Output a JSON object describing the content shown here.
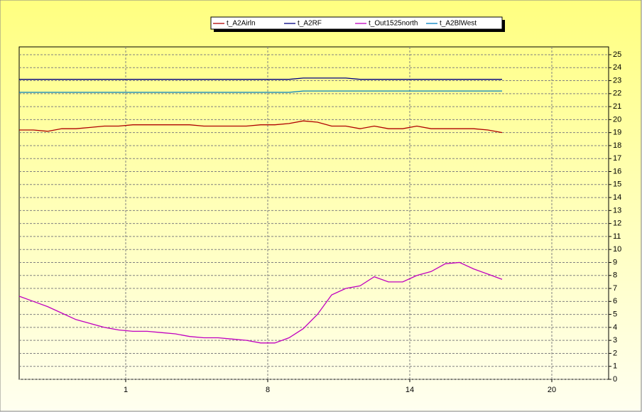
{
  "chart_data": {
    "type": "line",
    "x": [
      0.25,
      0.35,
      0.45,
      0.55,
      0.65,
      0.75,
      0.85,
      0.95,
      1.05,
      1.15,
      1.25,
      1.35,
      1.45,
      1.55,
      1.65,
      1.75,
      1.85,
      1.95,
      2.05,
      2.15,
      2.25,
      2.35,
      2.45,
      2.55,
      2.65,
      2.75,
      2.85,
      2.95,
      3.05,
      3.15,
      3.25,
      3.35,
      3.45,
      3.55,
      3.65
    ],
    "series": [
      {
        "name": "t_A2Airln",
        "color": "#b00000",
        "values": [
          19.2,
          19.2,
          19.1,
          19.3,
          19.3,
          19.4,
          19.5,
          19.5,
          19.6,
          19.6,
          19.6,
          19.6,
          19.6,
          19.5,
          19.5,
          19.5,
          19.5,
          19.6,
          19.6,
          19.7,
          19.9,
          19.8,
          19.5,
          19.5,
          19.3,
          19.5,
          19.3,
          19.3,
          19.5,
          19.3,
          19.3,
          19.3,
          19.3,
          19.2,
          19.0
        ]
      },
      {
        "name": "t_A2RF",
        "color": "#000080",
        "values": [
          23.1,
          23.1,
          23.1,
          23.1,
          23.1,
          23.1,
          23.1,
          23.1,
          23.1,
          23.1,
          23.1,
          23.1,
          23.1,
          23.1,
          23.1,
          23.1,
          23.1,
          23.1,
          23.1,
          23.1,
          23.2,
          23.2,
          23.2,
          23.2,
          23.1,
          23.1,
          23.1,
          23.1,
          23.1,
          23.1,
          23.1,
          23.1,
          23.1,
          23.1,
          23.1
        ]
      },
      {
        "name": "t_Out1525north",
        "color": "#c000c0",
        "values": [
          6.4,
          6.0,
          5.6,
          5.1,
          4.6,
          4.3,
          4.0,
          3.8,
          3.7,
          3.7,
          3.6,
          3.5,
          3.3,
          3.2,
          3.2,
          3.1,
          3.0,
          2.8,
          2.8,
          3.2,
          3.9,
          5.0,
          6.5,
          7.0,
          7.2,
          7.9,
          7.5,
          7.5,
          8.0,
          8.3,
          8.9,
          9.0,
          8.5,
          8.1,
          7.7
        ]
      },
      {
        "name": "t_A2BlWest",
        "color": "#0080c0",
        "values": [
          22.1,
          22.1,
          22.1,
          22.1,
          22.1,
          22.1,
          22.1,
          22.1,
          22.1,
          22.1,
          22.1,
          22.1,
          22.1,
          22.1,
          22.1,
          22.1,
          22.1,
          22.1,
          22.1,
          22.1,
          22.2,
          22.2,
          22.2,
          22.2,
          22.2,
          22.2,
          22.2,
          22.2,
          22.2,
          22.2,
          22.2,
          22.2,
          22.2,
          22.2,
          22.2
        ]
      }
    ],
    "xlim": [
      0.25,
      4.4
    ],
    "xticks": [
      {
        "value": 1,
        "label": "1"
      },
      {
        "value": 2,
        "label": "8"
      },
      {
        "value": 3,
        "label": "14"
      },
      {
        "value": 4,
        "label": "20"
      }
    ],
    "ylim": [
      0,
      25.6
    ],
    "yticks": [
      0,
      1,
      2,
      3,
      4,
      5,
      6,
      7,
      8,
      9,
      10,
      11,
      12,
      13,
      14,
      15,
      16,
      17,
      18,
      19,
      20,
      21,
      22,
      23,
      24,
      25
    ],
    "grid": true
  }
}
